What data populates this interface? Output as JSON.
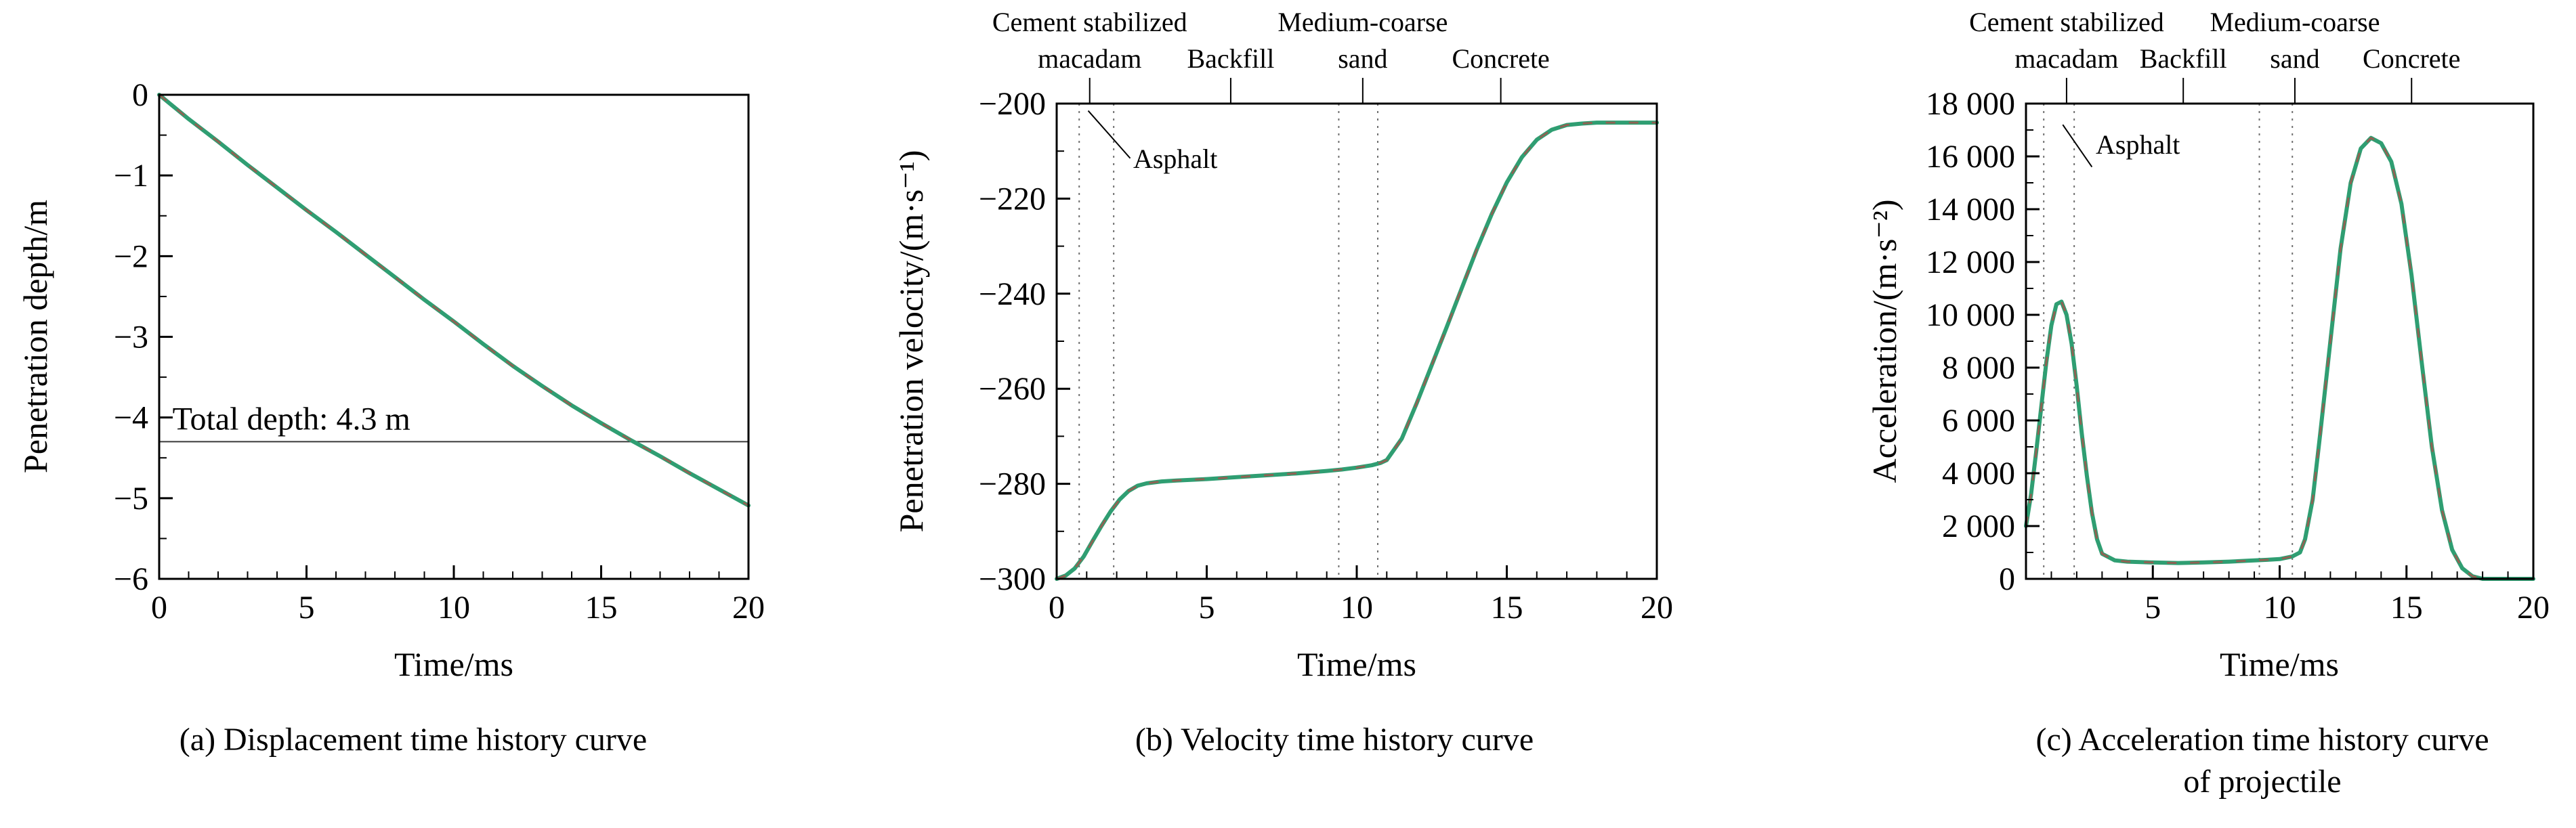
{
  "colors": {
    "curve": "#2f9e72",
    "curve_overlay": "#a8524b",
    "axis": "#000000",
    "guide": "#6f6f6f",
    "depth_line": "#3a3a3a"
  },
  "chart_data": [
    {
      "type": "line",
      "caption": "(a) Displacement time history curve",
      "xlabel": "Time/ms",
      "ylabel": "Penetration depth/m",
      "xlim": [
        0,
        20
      ],
      "ylim": [
        -6,
        0
      ],
      "x_minor": 1,
      "y_minor": 0.5,
      "xticks": [
        {
          "v": 0,
          "t": "0"
        },
        {
          "v": 5,
          "t": "5"
        },
        {
          "v": 10,
          "t": "10"
        },
        {
          "v": 15,
          "t": "15"
        },
        {
          "v": 20,
          "t": "20"
        }
      ],
      "yticks": [
        {
          "v": 0,
          "t": "0"
        },
        {
          "v": -1,
          "t": "−1"
        },
        {
          "v": -2,
          "t": "−2"
        },
        {
          "v": -3,
          "t": "−3"
        },
        {
          "v": -4,
          "t": "−4"
        },
        {
          "v": -5,
          "t": "−5"
        },
        {
          "v": -6,
          "t": "−6"
        }
      ],
      "depth_line": {
        "y": -4.3,
        "label": "Total depth: 4.3 m",
        "label_x": 0.45
      },
      "series": {
        "x": [
          0,
          1,
          2,
          3,
          4,
          5,
          6,
          7,
          8,
          9,
          10,
          11,
          12,
          13,
          14,
          15,
          16,
          17,
          18,
          19,
          20
        ],
        "y": [
          0,
          -0.3,
          -0.58,
          -0.87,
          -1.15,
          -1.43,
          -1.7,
          -1.98,
          -2.26,
          -2.54,
          -2.81,
          -3.09,
          -3.36,
          -3.61,
          -3.85,
          -4.07,
          -4.28,
          -4.48,
          -4.69,
          -4.89,
          -5.09
        ]
      }
    },
    {
      "type": "line",
      "caption": "(b) Velocity time history curve",
      "xlabel": "Time/ms",
      "ylabel": "Penetration velocity/(m·s⁻¹)",
      "xlim": [
        0,
        20
      ],
      "ylim": [
        -300,
        -200
      ],
      "x_minor": 1,
      "y_minor": 10,
      "xticks": [
        {
          "v": 0,
          "t": "0"
        },
        {
          "v": 5,
          "t": "5"
        },
        {
          "v": 10,
          "t": "10"
        },
        {
          "v": 15,
          "t": "15"
        },
        {
          "v": 20,
          "t": "20"
        }
      ],
      "yticks": [
        {
          "v": -200,
          "t": "−200"
        },
        {
          "v": -220,
          "t": "−220"
        },
        {
          "v": -240,
          "t": "−240"
        },
        {
          "v": -260,
          "t": "−260"
        },
        {
          "v": -280,
          "t": "−280"
        },
        {
          "v": -300,
          "t": "−300"
        }
      ],
      "layer_boundaries": [
        0.75,
        1.9,
        9.4,
        10.7
      ],
      "top_labels": [
        {
          "line1": "Cement stabilized",
          "line2": "macadam",
          "x": 1.1
        },
        {
          "line2": "Backfill",
          "x": 5.8
        },
        {
          "line1": "Medium-coarse",
          "line2": "sand",
          "x": 10.2
        },
        {
          "line2": "Concrete",
          "x": 14.8
        }
      ],
      "pointer_label": {
        "text": "Asphalt",
        "text_x": 2.55,
        "text_y": -213.5,
        "line": [
          2.45,
          -211.5,
          1.05,
          -201.5
        ]
      },
      "series": {
        "x": [
          0,
          0.3,
          0.6,
          0.9,
          1.2,
          1.5,
          1.8,
          2.1,
          2.4,
          2.7,
          3,
          3.5,
          4,
          5,
          6,
          7,
          8,
          9,
          9.5,
          10,
          10.5,
          10.8,
          11,
          11.5,
          12,
          12.5,
          13,
          13.5,
          14,
          14.5,
          15,
          15.5,
          16,
          16.5,
          17,
          17.5,
          18,
          19,
          20
        ],
        "y": [
          -300,
          -299.3,
          -297.8,
          -295.3,
          -292,
          -288.8,
          -285.8,
          -283.3,
          -281.5,
          -280.4,
          -279.9,
          -279.5,
          -279.3,
          -279,
          -278.6,
          -278.2,
          -277.8,
          -277.3,
          -277,
          -276.6,
          -276.1,
          -275.6,
          -275,
          -270.5,
          -263,
          -255,
          -247,
          -238.8,
          -230.7,
          -223.2,
          -216.6,
          -211.3,
          -207.6,
          -205.5,
          -204.5,
          -204.2,
          -204,
          -204,
          -204
        ]
      }
    },
    {
      "type": "line",
      "caption": "(c) Acceleration time history curve of projectile",
      "xlabel": "Time/ms",
      "ylabel": "Acceleration/(m·s⁻²)",
      "xlim": [
        0,
        20
      ],
      "ylim": [
        0,
        18000
      ],
      "x_minor": 1,
      "y_minor": 1000,
      "xticks": [
        {
          "v": 5,
          "t": "5"
        },
        {
          "v": 10,
          "t": "10"
        },
        {
          "v": 15,
          "t": "15"
        },
        {
          "v": 20,
          "t": "20"
        }
      ],
      "yticks": [
        {
          "v": 18000,
          "t": "18 000"
        },
        {
          "v": 16000,
          "t": "16 000"
        },
        {
          "v": 14000,
          "t": "14 000"
        },
        {
          "v": 12000,
          "t": "12 000"
        },
        {
          "v": 10000,
          "t": "10 000"
        },
        {
          "v": 8000,
          "t": "8 000"
        },
        {
          "v": 6000,
          "t": "6 000"
        },
        {
          "v": 4000,
          "t": "4 000"
        },
        {
          "v": 2000,
          "t": "2 000"
        },
        {
          "v": 0,
          "t": "0"
        }
      ],
      "layer_boundaries": [
        0.7,
        1.9,
        9.2,
        10.5
      ],
      "top_labels": [
        {
          "line1": "Cement stabilized",
          "line2": "macadam",
          "x": 1.6
        },
        {
          "line2": "Backfill",
          "x": 6.2
        },
        {
          "line1": "Medium-coarse",
          "line2": "sand",
          "x": 10.6
        },
        {
          "line2": "Concrete",
          "x": 15.2
        }
      ],
      "pointer_label": {
        "text": "Asphalt",
        "text_x": 2.75,
        "text_y": 16100,
        "line": [
          2.6,
          15600,
          1.45,
          17200
        ]
      },
      "series": {
        "x": [
          0,
          0.2,
          0.4,
          0.6,
          0.8,
          1,
          1.2,
          1.4,
          1.6,
          1.8,
          2,
          2.2,
          2.4,
          2.6,
          2.8,
          3,
          3.5,
          4,
          5,
          6,
          7,
          8,
          9,
          9.5,
          10,
          10.5,
          10.8,
          11,
          11.3,
          11.6,
          12,
          12.4,
          12.8,
          13.2,
          13.6,
          14,
          14.4,
          14.8,
          15.2,
          15.6,
          16,
          16.4,
          16.8,
          17.2,
          17.6,
          18,
          19,
          20
        ],
        "y": [
          2000,
          3200,
          4800,
          6500,
          8200,
          9600,
          10400,
          10500,
          10000,
          8900,
          7300,
          5500,
          3900,
          2500,
          1500,
          950,
          700,
          650,
          620,
          600,
          620,
          650,
          700,
          720,
          750,
          850,
          1000,
          1500,
          3000,
          5500,
          9000,
          12500,
          15000,
          16300,
          16700,
          16500,
          15800,
          14200,
          11500,
          8200,
          5000,
          2600,
          1100,
          400,
          100,
          0,
          0,
          0
        ]
      }
    }
  ]
}
